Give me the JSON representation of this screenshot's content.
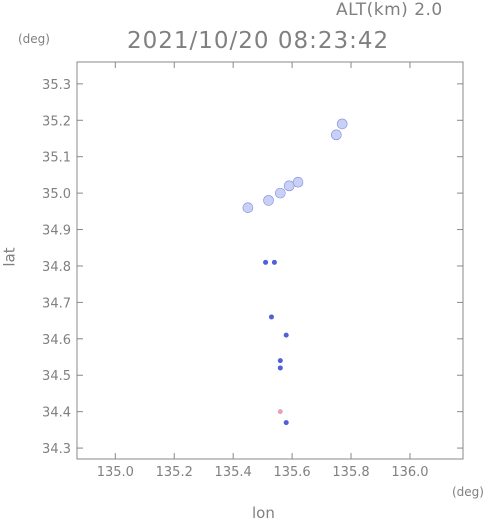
{
  "header": {
    "altitude_label": "ALT(km) 2.0",
    "timestamp": "2021/10/20 08:23:42"
  },
  "chart_data": {
    "type": "scatter",
    "xlabel": "lon",
    "ylabel": "lat",
    "x_unit": "(deg)",
    "y_unit": "(deg)",
    "xlim": [
      134.87,
      136.18
    ],
    "ylim": [
      34.27,
      35.36
    ],
    "x_ticks": [
      "135.0",
      "135.2",
      "135.4",
      "135.6",
      "135.8",
      "136.0"
    ],
    "y_ticks": [
      "34.3",
      "34.4",
      "34.5",
      "34.6",
      "34.7",
      "34.8",
      "34.9",
      "35.0",
      "35.1",
      "35.2",
      "35.3"
    ],
    "grid": false,
    "colors": {
      "light_echo": "#c9d0f5",
      "blue_echo": "#5060d8",
      "pink_echo": "#e8a0c0"
    },
    "points": [
      {
        "lon": 135.77,
        "lat": 35.19,
        "shade": "light"
      },
      {
        "lon": 135.75,
        "lat": 35.16,
        "shade": "light"
      },
      {
        "lon": 135.62,
        "lat": 35.03,
        "shade": "light"
      },
      {
        "lon": 135.59,
        "lat": 35.02,
        "shade": "light"
      },
      {
        "lon": 135.56,
        "lat": 35.0,
        "shade": "light"
      },
      {
        "lon": 135.52,
        "lat": 34.98,
        "shade": "light"
      },
      {
        "lon": 135.45,
        "lat": 34.96,
        "shade": "light"
      },
      {
        "lon": 135.51,
        "lat": 34.81,
        "shade": "blue"
      },
      {
        "lon": 135.54,
        "lat": 34.81,
        "shade": "blue"
      },
      {
        "lon": 135.53,
        "lat": 34.66,
        "shade": "blue"
      },
      {
        "lon": 135.58,
        "lat": 34.61,
        "shade": "blue"
      },
      {
        "lon": 135.56,
        "lat": 34.54,
        "shade": "blue"
      },
      {
        "lon": 135.56,
        "lat": 34.52,
        "shade": "blue"
      },
      {
        "lon": 135.56,
        "lat": 34.4,
        "shade": "pink"
      },
      {
        "lon": 135.58,
        "lat": 34.37,
        "shade": "blue"
      }
    ]
  }
}
